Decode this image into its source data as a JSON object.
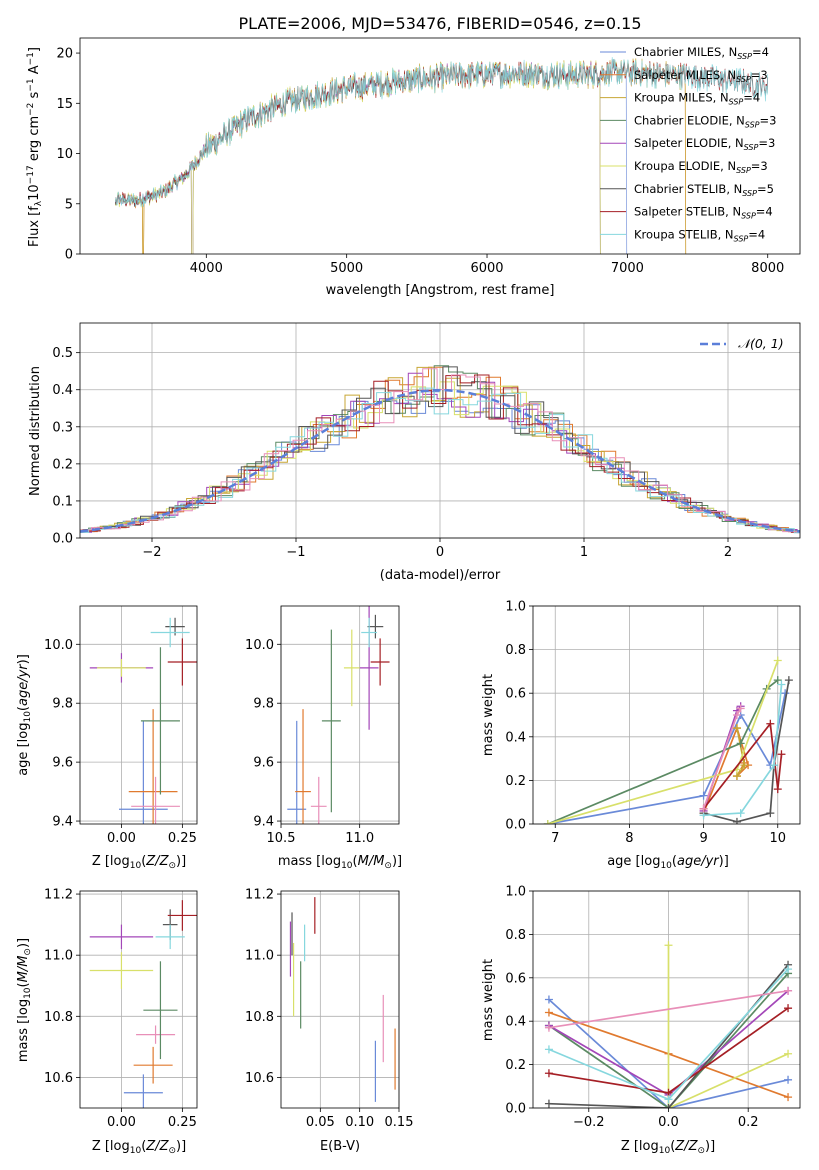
{
  "title": "PLATE=2006, MJD=53476, FIBERID=0546, z=0.15",
  "colors": {
    "grid": "#b0b0b0",
    "gauss": "#5b7fd9"
  },
  "chart_data": [
    {
      "id": "spectrum",
      "type": "line",
      "xlabel": "wavelength [Angstrom, rest frame]",
      "ylabel": "Flux [f_λ 10^-17 erg cm^-2 s^-1 A^-1]",
      "xlim": [
        3100,
        8230
      ],
      "ylim": [
        0,
        21.5
      ],
      "xticks": [
        4000,
        5000,
        6000,
        7000,
        8000
      ],
      "yticks": [
        0,
        5,
        10,
        15,
        20
      ],
      "grid": false,
      "legend_position": "top-right",
      "continuum": {
        "x": [
          3300,
          3500,
          3700,
          3850,
          4000,
          4300,
          4600,
          5000,
          5400,
          5800,
          6200,
          6600,
          7000,
          7400,
          7800,
          8000
        ],
        "y": [
          5.5,
          5.3,
          6.2,
          7.8,
          10.5,
          13.5,
          15.2,
          16.5,
          17.2,
          17.8,
          18.0,
          17.8,
          18.1,
          17.8,
          17.2,
          16.6
        ]
      },
      "series": [
        {
          "name": "Chabrier MILES, N_SSP=4",
          "color": "#6a8ad8",
          "x_range": [
            3350,
            7000
          ],
          "dropouts": [
            7000
          ]
        },
        {
          "name": "Salpeter MILES, N_SSP=3",
          "color": "#e07a2f",
          "x_range": [
            3350,
            7420
          ],
          "dropouts": [
            3550,
            7420
          ]
        },
        {
          "name": "Kroupa MILES, N_SSP=4",
          "color": "#c7a634",
          "x_range": [
            3350,
            7420
          ],
          "dropouts": [
            3550,
            7420
          ]
        },
        {
          "name": "Chabrier ELODIE, N_SSP=3",
          "color": "#5b8a63",
          "x_range": [
            3350,
            6810
          ],
          "dropouts": [
            3900,
            6810
          ]
        },
        {
          "name": "Salpeter ELODIE, N_SSP=3",
          "color": "#a347b8",
          "x_range": [
            3350,
            6810
          ],
          "dropouts": [
            3900,
            6810
          ]
        },
        {
          "name": "Kroupa ELODIE, N_SSP=3",
          "color": "#d8e06a",
          "x_range": [
            3350,
            6810
          ],
          "dropouts": [
            3900,
            6810
          ]
        },
        {
          "name": "Chabrier STELIB, N_SSP=5",
          "color": "#555555",
          "x_range": [
            3350,
            8000
          ],
          "dropouts": []
        },
        {
          "name": "Salpeter STELIB, N_SSP=4",
          "color": "#a51f25",
          "x_range": [
            3350,
            8000
          ],
          "dropouts": []
        },
        {
          "name": "Kroupa STELIB, N_SSP=4",
          "color": "#86d7de",
          "x_range": [
            3350,
            8000
          ],
          "dropouts": []
        }
      ]
    },
    {
      "id": "residuals",
      "type": "step-histogram",
      "xlabel": "(data-model)/error",
      "ylabel": "Normed distribution",
      "xlim": [
        -2.5,
        2.5
      ],
      "ylim": [
        0,
        0.58
      ],
      "xticks": [
        -2,
        -1,
        0,
        1,
        2
      ],
      "xticklabels": [
        "−2",
        "−1",
        "0",
        "1",
        "2"
      ],
      "yticks": [
        0.0,
        0.1,
        0.2,
        0.3,
        0.4,
        0.5
      ],
      "yticklabels": [
        "0.0",
        "0.1",
        "0.2",
        "0.3",
        "0.4",
        "0.5"
      ],
      "grid": true,
      "legend_position": "top-right",
      "legend": [
        "𝒩(0, 1)"
      ],
      "bin_width": 0.1,
      "series": [
        {
          "color": "#6a8ad8"
        },
        {
          "color": "#e07a2f"
        },
        {
          "color": "#c7a634"
        },
        {
          "color": "#5b8a63"
        },
        {
          "color": "#a347b8"
        },
        {
          "color": "#d8e06a"
        },
        {
          "color": "#555555"
        },
        {
          "color": "#a51f25"
        },
        {
          "color": "#86d7de"
        },
        {
          "color": "#e88fb8"
        }
      ],
      "gaussian": {
        "mu": 0,
        "sigma": 1
      }
    },
    {
      "id": "age_vs_Z",
      "type": "errorbar",
      "xlabel": "Z [log10(Z/Z⊙)]",
      "ylabel": "age [log10(age/yr)]",
      "xlim": [
        -0.17,
        0.31
      ],
      "ylim": [
        9.39,
        10.13
      ],
      "xticks": [
        0.0,
        0.25
      ],
      "xticklabels": [
        "0.00",
        "0.25"
      ],
      "yticks": [
        9.4,
        9.6,
        9.8,
        10.0
      ],
      "yticklabels": [
        "9.4",
        "9.6",
        "9.8",
        "10.0"
      ],
      "grid": true,
      "points": [
        {
          "x": 0.09,
          "xerr": 0.1,
          "y": 9.44,
          "yerr": 0.3,
          "color": "#6a8ad8"
        },
        {
          "x": 0.13,
          "xerr": 0.1,
          "y": 9.5,
          "yerr": 0.28,
          "color": "#e07a2f"
        },
        {
          "x": 0.14,
          "xerr": 0.1,
          "y": 9.45,
          "yerr": 0.1,
          "color": "#e88fb8"
        },
        {
          "x": 0.16,
          "xerr": 0.08,
          "y": 9.74,
          "yerr": 0.25,
          "color": "#5b8a63"
        },
        {
          "x": 0.0,
          "xerr": 0.13,
          "y": 9.92,
          "yerr": 0.05,
          "color": "#a347b8"
        },
        {
          "x": 0.0,
          "xerr": 0.1,
          "y": 9.92,
          "yerr": 0.03,
          "color": "#d8e06a"
        },
        {
          "x": 0.22,
          "xerr": 0.04,
          "y": 10.06,
          "yerr": 0.03,
          "color": "#555555"
        },
        {
          "x": 0.2,
          "xerr": 0.08,
          "y": 10.04,
          "yerr": 0.05,
          "color": "#86d7de"
        },
        {
          "x": 0.25,
          "xerr": 0.06,
          "y": 9.94,
          "yerr": 0.08,
          "color": "#a51f25"
        }
      ]
    },
    {
      "id": "age_vs_mass",
      "type": "errorbar",
      "xlabel": "mass [log10(M/M⊙)]",
      "ylabel": "",
      "xlim": [
        10.5,
        11.25
      ],
      "ylim": [
        9.39,
        10.13
      ],
      "xticks": [
        10.5,
        11.0
      ],
      "xticklabels": [
        "10.5",
        "11.0"
      ],
      "yticks": [
        9.4,
        9.6,
        9.8,
        10.0
      ],
      "yticklabels": [
        "9.4",
        "9.6",
        "9.8",
        "10.0"
      ],
      "grid": true,
      "points": [
        {
          "x": 10.6,
          "xerr": 0.06,
          "y": 9.44,
          "yerr": 0.3,
          "color": "#6a8ad8"
        },
        {
          "x": 10.64,
          "xerr": 0.05,
          "y": 9.5,
          "yerr": 0.28,
          "color": "#e07a2f"
        },
        {
          "x": 10.74,
          "xerr": 0.05,
          "y": 9.45,
          "yerr": 0.1,
          "color": "#e88fb8"
        },
        {
          "x": 10.82,
          "xerr": 0.06,
          "y": 9.74,
          "yerr": 0.31,
          "color": "#5b8a63"
        },
        {
          "x": 11.06,
          "xerr": 0.06,
          "y": 9.92,
          "yerr": 0.21,
          "color": "#a347b8"
        },
        {
          "x": 10.95,
          "xerr": 0.05,
          "y": 9.92,
          "yerr": 0.13,
          "color": "#d8e06a"
        },
        {
          "x": 11.1,
          "xerr": 0.05,
          "y": 10.06,
          "yerr": 0.04,
          "color": "#555555"
        },
        {
          "x": 11.06,
          "xerr": 0.05,
          "y": 10.04,
          "yerr": 0.05,
          "color": "#86d7de"
        },
        {
          "x": 11.13,
          "xerr": 0.06,
          "y": 9.94,
          "yerr": 0.08,
          "color": "#a51f25"
        }
      ]
    },
    {
      "id": "mw_vs_age",
      "type": "line",
      "xlabel": "age [log10(age/yr)]",
      "ylabel": "mass weight",
      "xlim": [
        6.7,
        10.3
      ],
      "ylim": [
        0.0,
        1.0
      ],
      "xticks": [
        7,
        8,
        9,
        10
      ],
      "xticklabels": [
        "7",
        "8",
        "9",
        "10"
      ],
      "yticks": [
        0.0,
        0.2,
        0.4,
        0.6,
        0.8,
        1.0
      ],
      "yticklabels": [
        "0.0",
        "0.2",
        "0.4",
        "0.6",
        "0.8",
        "1.0"
      ],
      "grid": true,
      "series": [
        {
          "color": "#6a8ad8",
          "x": [
            6.9,
            9.0,
            9.5,
            9.9,
            10.1
          ],
          "y": [
            0.0,
            0.13,
            0.5,
            0.27,
            0.6
          ]
        },
        {
          "color": "#e07a2f",
          "x": [
            9.0,
            9.45,
            9.6,
            9.45,
            9.55
          ],
          "y": [
            0.05,
            0.44,
            0.27,
            0.22,
            0.28
          ]
        },
        {
          "color": "#c7a634",
          "x": [
            9.45,
            9.55,
            9.45
          ],
          "y": [
            0.44,
            0.27,
            0.22
          ]
        },
        {
          "color": "#5b8a63",
          "x": [
            6.9,
            9.5,
            9.85,
            10.0
          ],
          "y": [
            0.0,
            0.37,
            0.62,
            0.66
          ]
        },
        {
          "color": "#a347b8",
          "x": [
            9.0,
            9.45,
            9.5
          ],
          "y": [
            0.06,
            0.52,
            0.54
          ]
        },
        {
          "color": "#d8e06a",
          "x": [
            6.9,
            9.45,
            10.0
          ],
          "y": [
            0.0,
            0.25,
            0.75
          ]
        },
        {
          "color": "#555555",
          "x": [
            9.0,
            9.45,
            9.9,
            9.95,
            10.15
          ],
          "y": [
            0.05,
            0.01,
            0.05,
            0.27,
            0.66
          ]
        },
        {
          "color": "#a51f25",
          "x": [
            9.0,
            9.9,
            10.0,
            10.05
          ],
          "y": [
            0.07,
            0.46,
            0.16,
            0.32
          ]
        },
        {
          "color": "#86d7de",
          "x": [
            9.0,
            9.5,
            9.95,
            10.05
          ],
          "y": [
            0.04,
            0.05,
            0.27,
            0.64
          ]
        },
        {
          "color": "#e88fb8",
          "x": [
            9.0,
            9.45,
            9.5
          ],
          "y": [
            0.07,
            0.5,
            0.53
          ]
        }
      ]
    },
    {
      "id": "mass_vs_Z",
      "type": "errorbar",
      "xlabel": "Z [log10(Z/Z⊙)]",
      "ylabel": "mass [log10(M/M⊙)]",
      "xlim": [
        -0.17,
        0.31
      ],
      "ylim": [
        10.5,
        11.21
      ],
      "xticks": [
        0.0,
        0.25
      ],
      "xticklabels": [
        "0.00",
        "0.25"
      ],
      "yticks": [
        10.6,
        10.8,
        11.0,
        11.2
      ],
      "yticklabels": [
        "10.6",
        "10.8",
        "11.0",
        "11.2"
      ],
      "grid": true,
      "points": [
        {
          "x": 0.09,
          "xerr": 0.08,
          "y": 10.55,
          "yerr": 0.06,
          "color": "#6a8ad8"
        },
        {
          "x": 0.13,
          "xerr": 0.08,
          "y": 10.64,
          "yerr": 0.06,
          "color": "#e07a2f"
        },
        {
          "x": 0.14,
          "xerr": 0.08,
          "y": 10.74,
          "yerr": 0.03,
          "color": "#e88fb8"
        },
        {
          "x": 0.16,
          "xerr": 0.07,
          "y": 10.82,
          "yerr": 0.16,
          "color": "#5b8a63"
        },
        {
          "x": 0.0,
          "xerr": 0.13,
          "y": 11.06,
          "yerr": 0.04,
          "color": "#a347b8"
        },
        {
          "x": 0.0,
          "xerr": 0.13,
          "y": 10.95,
          "yerr": 0.06,
          "color": "#d8e06a"
        },
        {
          "x": 0.2,
          "xerr": 0.03,
          "y": 11.1,
          "yerr": 0.05,
          "color": "#555555"
        },
        {
          "x": 0.2,
          "xerr": 0.06,
          "y": 11.06,
          "yerr": 0.04,
          "color": "#86d7de"
        },
        {
          "x": 0.25,
          "xerr": 0.06,
          "y": 11.13,
          "yerr": 0.05,
          "color": "#a51f25"
        }
      ]
    },
    {
      "id": "mass_vs_EBV",
      "type": "errorbar",
      "xlabel": "E(B-V)",
      "ylabel": "",
      "xlim": [
        0.0,
        0.15
      ],
      "ylim": [
        10.5,
        11.21
      ],
      "xticks": [
        0.05,
        0.1,
        0.15
      ],
      "xticklabels": [
        "0.05",
        "0.10",
        "0.15"
      ],
      "yticks": [
        10.6,
        10.8,
        11.0,
        11.2
      ],
      "yticklabels": [
        "10.6",
        "10.8",
        "11.0",
        "11.2"
      ],
      "grid": true,
      "points": [
        {
          "x": 0.12,
          "xerr": 0,
          "y": 10.62,
          "yerr": 0.1,
          "color": "#6a8ad8"
        },
        {
          "x": 0.145,
          "xerr": 0,
          "y": 10.66,
          "yerr": 0.1,
          "color": "#e07a2f"
        },
        {
          "x": 0.13,
          "xerr": 0,
          "y": 10.76,
          "yerr": 0.11,
          "color": "#e88fb8"
        },
        {
          "x": 0.025,
          "xerr": 0,
          "y": 10.87,
          "yerr": 0.11,
          "color": "#5b8a63"
        },
        {
          "x": 0.012,
          "xerr": 0,
          "y": 11.02,
          "yerr": 0.09,
          "color": "#a347b8"
        },
        {
          "x": 0.016,
          "xerr": 0,
          "y": 10.92,
          "yerr": 0.12,
          "color": "#d8e06a"
        },
        {
          "x": 0.014,
          "xerr": 0,
          "y": 11.07,
          "yerr": 0.07,
          "color": "#555555"
        },
        {
          "x": 0.03,
          "xerr": 0,
          "y": 11.04,
          "yerr": 0.06,
          "color": "#86d7de"
        },
        {
          "x": 0.043,
          "xerr": 0,
          "y": 11.13,
          "yerr": 0.06,
          "color": "#a51f25"
        }
      ]
    },
    {
      "id": "mw_vs_Z",
      "type": "line",
      "xlabel": "Z [log10(Z/Z⊙)]",
      "ylabel": "mass weight",
      "xlim": [
        -0.34,
        0.33
      ],
      "ylim": [
        0.0,
        1.0
      ],
      "xticks": [
        -0.2,
        0.0,
        0.2
      ],
      "xticklabels": [
        "−0.2",
        "0.0",
        "0.2"
      ],
      "yticks": [
        0.0,
        0.2,
        0.4,
        0.6,
        0.8,
        1.0
      ],
      "yticklabels": [
        "0.0",
        "0.2",
        "0.4",
        "0.6",
        "0.8",
        "1.0"
      ],
      "grid": true,
      "series": [
        {
          "color": "#6a8ad8",
          "x": [
            -0.3,
            0.0,
            0.3
          ],
          "y": [
            0.5,
            0.0,
            0.13
          ]
        },
        {
          "color": "#e07a2f",
          "x": [
            -0.3,
            0.0,
            0.3
          ],
          "y": [
            0.44,
            0.25,
            0.05
          ]
        },
        {
          "color": "#5b8a63",
          "x": [
            -0.3,
            0.0,
            0.3
          ],
          "y": [
            0.38,
            0.0,
            0.62
          ]
        },
        {
          "color": "#a347b8",
          "x": [
            -0.3,
            0.0,
            0.3
          ],
          "y": [
            0.38,
            0.06,
            0.54
          ]
        },
        {
          "color": "#d8e06a",
          "x": [
            0.0,
            0.0,
            0.3
          ],
          "y": [
            0.75,
            0.0,
            0.25
          ]
        },
        {
          "color": "#555555",
          "x": [
            -0.3,
            0.0,
            0.3
          ],
          "y": [
            0.02,
            0.0,
            0.66
          ]
        },
        {
          "color": "#a51f25",
          "x": [
            -0.3,
            0.0,
            0.3
          ],
          "y": [
            0.16,
            0.07,
            0.46
          ]
        },
        {
          "color": "#86d7de",
          "x": [
            -0.3,
            0.0,
            0.3
          ],
          "y": [
            0.27,
            0.04,
            0.64
          ]
        },
        {
          "color": "#e88fb8",
          "x": [
            -0.3,
            0.3
          ],
          "y": [
            0.37,
            0.54
          ]
        }
      ]
    }
  ]
}
